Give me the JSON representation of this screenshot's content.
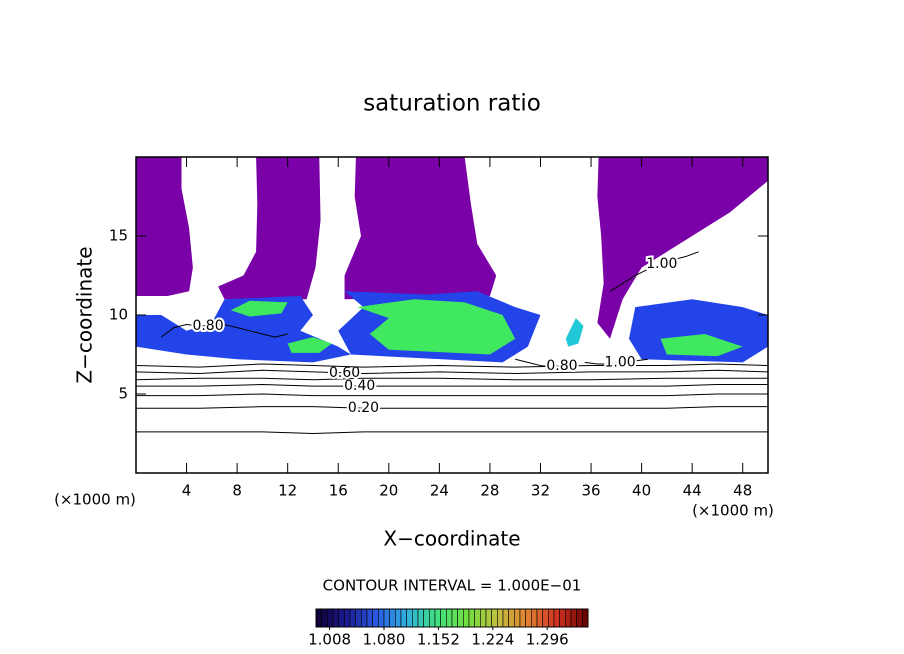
{
  "chart_data": {
    "type": "contour",
    "title": "saturation ratio",
    "x_label": "X−coordinate",
    "y_label": "Z−coordinate",
    "x_unit": "(×1000 m)",
    "y_unit": "(×1000 m)",
    "note": "CONTOUR INTERVAL = 1.000E−01",
    "xlim": [
      0,
      50
    ],
    "ylim": [
      0,
      20
    ],
    "xticks": [
      4,
      8,
      12,
      16,
      20,
      24,
      28,
      32,
      36,
      40,
      44,
      48
    ],
    "yticks": [
      5,
      10,
      15
    ],
    "regions": [
      {
        "color": "#7a00a8",
        "x": [
          0,
          3.6,
          3.6,
          4.2,
          4.5,
          4.2,
          2.5,
          0
        ],
        "z": [
          20,
          20,
          18,
          15.5,
          13,
          11.5,
          11.2,
          11.2
        ]
      },
      {
        "color": "#7a00a8",
        "x": [
          9.5,
          14.5,
          14.6,
          14.2,
          13.5,
          7,
          6.5,
          8.5,
          9.5,
          9.6
        ],
        "z": [
          20,
          20,
          16,
          13,
          11,
          11,
          11.8,
          12.5,
          14,
          17
        ]
      },
      {
        "color": "#7a00a8",
        "x": [
          17.4,
          26,
          26.5,
          27,
          28.5,
          28,
          16.5,
          16.5,
          17.8,
          17.3
        ],
        "z": [
          20,
          20,
          17,
          14.5,
          12.5,
          11.2,
          11,
          12.5,
          15,
          17.5
        ]
      },
      {
        "color": "#7a00a8",
        "x": [
          36.6,
          50,
          50,
          47,
          43,
          40,
          38.5,
          37.5,
          36.5,
          37,
          36.8,
          36.5
        ],
        "z": [
          20,
          20,
          18.5,
          16.5,
          14.5,
          13,
          11,
          8.5,
          9.5,
          12,
          15,
          17.5
        ]
      },
      {
        "color": "#2244e8",
        "x": [
          0,
          2,
          4,
          6,
          7,
          13,
          14,
          13,
          16,
          17,
          14,
          8,
          4,
          0
        ],
        "z": [
          10,
          10,
          9,
          9.5,
          11,
          11.2,
          10,
          9,
          8,
          7.5,
          7,
          7.2,
          7.5,
          8
        ]
      },
      {
        "color": "#2244e8",
        "x": [
          16.5,
          23,
          27,
          30,
          32,
          31,
          29,
          17,
          16,
          18
        ],
        "z": [
          11.5,
          11.3,
          11.5,
          10.5,
          10,
          8,
          7,
          7.5,
          9,
          10.5
        ]
      },
      {
        "color": "#2244e8",
        "x": [
          39.5,
          44,
          48,
          50,
          50,
          48,
          40,
          39
        ],
        "z": [
          10.5,
          11,
          10.5,
          10,
          8,
          7,
          7.2,
          8.5
        ]
      },
      {
        "color": "#20c8d8",
        "x": [
          34,
          34.8,
          35.4,
          35,
          34.2
        ],
        "z": [
          8.5,
          9.8,
          9.3,
          8.2,
          8
        ]
      },
      {
        "color": "#40e860",
        "x": [
          7.5,
          9,
          12,
          11.5,
          9
        ],
        "z": [
          10.3,
          10.9,
          10.8,
          10.1,
          9.9
        ]
      },
      {
        "color": "#40e860",
        "x": [
          12,
          14,
          15.5,
          14.5,
          12.3
        ],
        "z": [
          8.2,
          8.6,
          8.2,
          7.6,
          7.6
        ]
      },
      {
        "color": "#40e860",
        "x": [
          17.5,
          22,
          26,
          29,
          30,
          28,
          20,
          18.5,
          20
        ],
        "z": [
          10.5,
          11,
          10.8,
          10,
          8.5,
          7.5,
          7.8,
          8.8,
          9.8
        ]
      },
      {
        "color": "#40e860",
        "x": [
          41.5,
          45,
          48,
          46,
          42
        ],
        "z": [
          8.5,
          8.8,
          8,
          7.4,
          7.5
        ]
      }
    ],
    "contours": [
      {
        "x": [
          0,
          5,
          10,
          14,
          18,
          24,
          30,
          36,
          42,
          46,
          50
        ],
        "z": [
          2.6,
          2.6,
          2.6,
          2.5,
          2.6,
          2.6,
          2.6,
          2.6,
          2.6,
          2.6,
          2.6
        ]
      },
      {
        "label": "0.20",
        "label_x": 18,
        "x": [
          0,
          5,
          10,
          14,
          18,
          24,
          30,
          36,
          42,
          46,
          50
        ],
        "z": [
          4.1,
          4.1,
          4.2,
          4.2,
          4.1,
          4.1,
          4.1,
          4.1,
          4.1,
          4.2,
          4.2
        ]
      },
      {
        "x": [
          0,
          5,
          10,
          14,
          18,
          24,
          30,
          36,
          42,
          46,
          50
        ],
        "z": [
          4.9,
          4.9,
          5.0,
          4.9,
          4.9,
          4.9,
          4.9,
          4.9,
          4.9,
          5.0,
          5.0
        ]
      },
      {
        "label": "0.40",
        "label_x": 17.7,
        "x": [
          0,
          5,
          10,
          14,
          18,
          24,
          30,
          36,
          42,
          46,
          50
        ],
        "z": [
          5.5,
          5.5,
          5.6,
          5.5,
          5.5,
          5.5,
          5.5,
          5.5,
          5.5,
          5.6,
          5.6
        ]
      },
      {
        "x": [
          0,
          5,
          10,
          14,
          18,
          24,
          30,
          36,
          42,
          46,
          50
        ],
        "z": [
          5.9,
          6.0,
          6.0,
          5.9,
          6.0,
          6.0,
          5.9,
          5.9,
          6.0,
          6.0,
          6.0
        ]
      },
      {
        "label": "0.60",
        "label_x": 16.5,
        "x": [
          0,
          5,
          10,
          14,
          18,
          24,
          30,
          36,
          42,
          46,
          50
        ],
        "z": [
          6.4,
          6.3,
          6.5,
          6.4,
          6.3,
          6.4,
          6.3,
          6.4,
          6.4,
          6.5,
          6.4
        ]
      },
      {
        "x": [
          0,
          5,
          10,
          14,
          18,
          24,
          30,
          36,
          42,
          46,
          50
        ],
        "z": [
          6.8,
          6.7,
          6.9,
          6.8,
          6.7,
          6.8,
          6.7,
          6.8,
          6.8,
          6.9,
          6.8
        ]
      },
      {
        "label": "0.80",
        "label_x": 5.7,
        "x": [
          2,
          3,
          4,
          5,
          6,
          7,
          8,
          9,
          10,
          11,
          12
        ],
        "z": [
          8.6,
          9.2,
          9.4,
          9.3,
          9.3,
          9.4,
          9.2,
          9.0,
          8.8,
          8.6,
          8.8
        ]
      },
      {
        "label": "1.00",
        "label_x": 41.6,
        "x": [
          37.5,
          38.5,
          39.5,
          40.5,
          41.5,
          42.5,
          43.5,
          44.5
        ],
        "z": [
          11.5,
          12,
          12.5,
          12.9,
          13.2,
          13.5,
          13.7,
          14
        ]
      },
      {
        "label": "0.80",
        "label_x": 33.7,
        "x": [
          30,
          31,
          32,
          33,
          34,
          35
        ],
        "z": [
          7.2,
          7.0,
          6.8,
          6.7,
          6.8,
          7.0
        ]
      },
      {
        "label": "1.00",
        "label_x": 38.3,
        "x": [
          35.5,
          36.5,
          37.5,
          38.5,
          39.5,
          40.5
        ],
        "z": [
          7.0,
          6.9,
          6.9,
          7.0,
          7.1,
          7.2
        ]
      }
    ],
    "colorbar": {
      "lim": [
        0.99,
        1.35
      ],
      "colors": [
        "#100030",
        "#1a1a90",
        "#2a5ae0",
        "#30b0e0",
        "#40e080",
        "#70e040",
        "#c0c040",
        "#e08030",
        "#d03020",
        "#600000"
      ],
      "ticks": [
        1.008,
        {
          "value": 1.08,
          "label": "1.080"
        },
        1.152,
        1.224,
        1.296
      ]
    }
  }
}
